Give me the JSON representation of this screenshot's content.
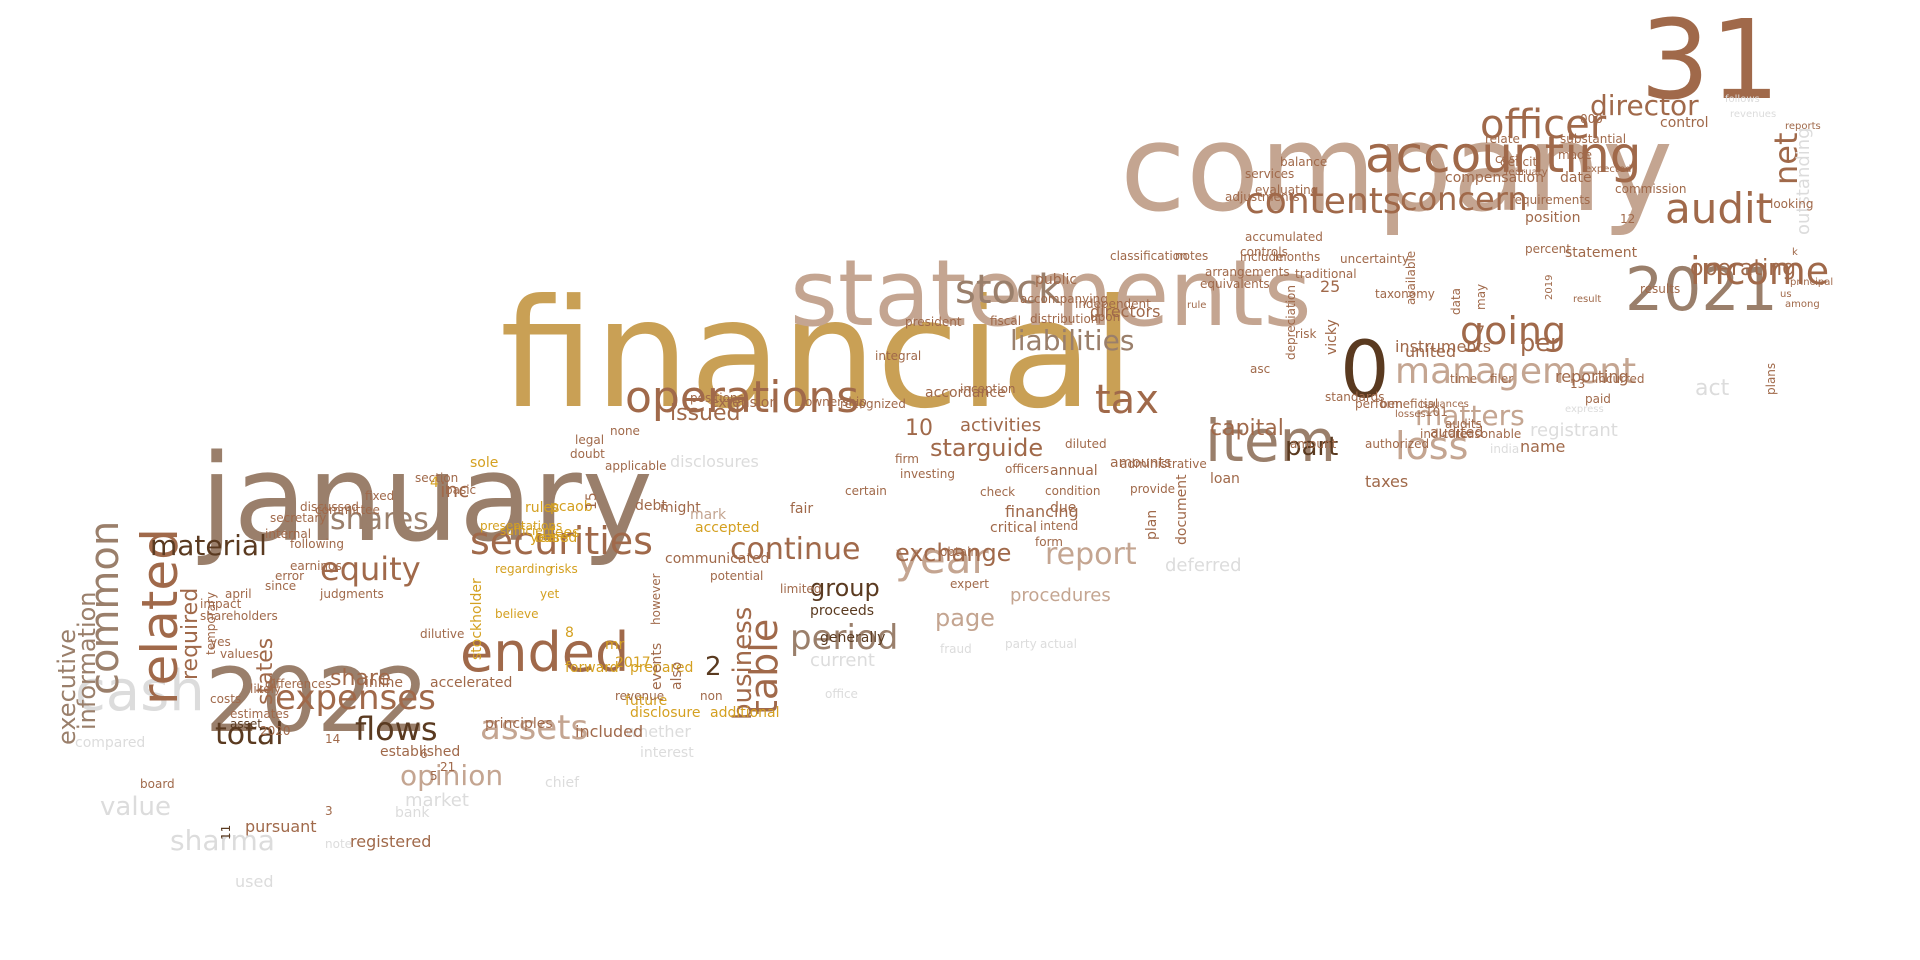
{
  "palette": {
    "background": "#ffffff",
    "gold": "#c9a055",
    "tan": "#c4a591",
    "taupe": "#9a7f6b",
    "brown": "#a0694a",
    "dark_brown": "#5a3a20",
    "mustard": "#d4a020",
    "grey": "#dcdcdc"
  },
  "words": [
    {
      "text": "financial"
    },
    {
      "text": "company"
    },
    {
      "text": "january"
    },
    {
      "text": "statements"
    },
    {
      "text": "31"
    },
    {
      "text": "2022"
    },
    {
      "text": "2021"
    },
    {
      "text": "0"
    },
    {
      "text": "item"
    },
    {
      "text": "cash"
    },
    {
      "text": "accounting"
    },
    {
      "text": "related"
    },
    {
      "text": "ended"
    },
    {
      "text": "income"
    },
    {
      "text": "audit"
    },
    {
      "text": "operations"
    },
    {
      "text": "management"
    },
    {
      "text": "common"
    },
    {
      "text": "securities"
    },
    {
      "text": "year"
    },
    {
      "text": "officer"
    },
    {
      "text": "contents"
    },
    {
      "text": "tax"
    },
    {
      "text": "stock"
    },
    {
      "text": "expenses"
    },
    {
      "text": "assets"
    },
    {
      "text": "loss"
    },
    {
      "text": "going"
    },
    {
      "text": "table"
    },
    {
      "text": "equity"
    },
    {
      "text": "net"
    },
    {
      "text": "flows"
    },
    {
      "text": "concern"
    },
    {
      "text": "report"
    },
    {
      "text": "period"
    },
    {
      "text": "shares"
    },
    {
      "text": "director"
    },
    {
      "text": "liabilities"
    },
    {
      "text": "continue"
    },
    {
      "text": "matters"
    },
    {
      "text": "exchange"
    },
    {
      "text": "total"
    },
    {
      "text": "opinion"
    },
    {
      "text": "material"
    },
    {
      "text": "sharma"
    },
    {
      "text": "value"
    },
    {
      "text": "executive"
    },
    {
      "text": "information"
    },
    {
      "text": "business"
    },
    {
      "text": "starguide"
    },
    {
      "text": "group"
    },
    {
      "text": "part"
    },
    {
      "text": "operating"
    },
    {
      "text": "capital"
    },
    {
      "text": "page"
    },
    {
      "text": "issued"
    },
    {
      "text": "share"
    },
    {
      "text": "act"
    },
    {
      "text": "per"
    },
    {
      "text": "procedures"
    },
    {
      "text": "2"
    },
    {
      "text": "10"
    },
    {
      "text": "required"
    },
    {
      "text": "deferred"
    },
    {
      "text": "registrant"
    },
    {
      "text": "activities"
    },
    {
      "text": "states"
    },
    {
      "text": "inc"
    },
    {
      "text": "outstanding"
    },
    {
      "text": "current"
    },
    {
      "text": "market"
    },
    {
      "text": "reporting"
    },
    {
      "text": "whether"
    },
    {
      "text": "disclosures"
    },
    {
      "text": "instruments"
    },
    {
      "text": "taxes"
    },
    {
      "text": "united"
    },
    {
      "text": "compensation"
    },
    {
      "text": "statement"
    },
    {
      "text": "date"
    },
    {
      "text": "vicky"
    },
    {
      "text": "7"
    },
    {
      "text": "financing"
    },
    {
      "text": "accordance"
    },
    {
      "text": "critical"
    },
    {
      "text": "pursuant"
    },
    {
      "text": "stockholder"
    },
    {
      "text": "chief"
    },
    {
      "text": "disclosure"
    },
    {
      "text": "audited"
    },
    {
      "text": "accompanying"
    },
    {
      "text": "control"
    },
    {
      "text": "position"
    },
    {
      "text": "000"
    },
    {
      "text": "notes"
    },
    {
      "text": "upon"
    },
    {
      "text": "public"
    },
    {
      "text": "fair"
    },
    {
      "text": "annual"
    },
    {
      "text": "due"
    },
    {
      "text": "amounts"
    },
    {
      "text": "plan"
    },
    {
      "text": "document"
    },
    {
      "text": "loan"
    },
    {
      "text": "proceeds"
    },
    {
      "text": "generally"
    },
    {
      "text": "inline"
    },
    {
      "text": "accelerated"
    },
    {
      "text": "principles"
    },
    {
      "text": "established"
    },
    {
      "text": "estimates"
    },
    {
      "text": "costs"
    },
    {
      "text": "likely"
    },
    {
      "text": "differences"
    },
    {
      "text": "april"
    },
    {
      "text": "since"
    },
    {
      "text": "earnings"
    },
    {
      "text": "internal"
    },
    {
      "text": "committee"
    },
    {
      "text": "secretary"
    },
    {
      "text": "discussed"
    },
    {
      "text": "section"
    },
    {
      "text": "basic"
    },
    {
      "text": "sole"
    },
    {
      "text": "rules"
    },
    {
      "text": "pcaob"
    },
    {
      "text": "years"
    },
    {
      "text": "based"
    },
    {
      "text": "15"
    },
    {
      "text": "fees"
    },
    {
      "text": "debt"
    },
    {
      "text": "might"
    },
    {
      "text": "mark"
    },
    {
      "text": "accepted"
    },
    {
      "text": "communicated"
    },
    {
      "text": "prepared"
    },
    {
      "text": "forward"
    },
    {
      "text": "events"
    },
    {
      "text": "also"
    },
    {
      "text": "2017"
    },
    {
      "text": "mr"
    },
    {
      "text": "8"
    },
    {
      "text": "future"
    },
    {
      "text": "interest"
    },
    {
      "text": "bank"
    },
    {
      "text": "note"
    },
    {
      "text": "used"
    },
    {
      "text": "compared"
    },
    {
      "text": "board"
    },
    {
      "text": "asset"
    },
    {
      "text": "14"
    },
    {
      "text": "2020"
    },
    {
      "text": "1"
    },
    {
      "text": "4"
    },
    {
      "text": "additional"
    },
    {
      "text": "extension"
    },
    {
      "text": "positions"
    },
    {
      "text": "none"
    },
    {
      "text": "legal"
    },
    {
      "text": "doubt"
    },
    {
      "text": "applicable"
    },
    {
      "text": "integral"
    },
    {
      "text": "president"
    },
    {
      "text": "fiscal"
    },
    {
      "text": "independent"
    },
    {
      "text": "controls"
    },
    {
      "text": "accumulated"
    },
    {
      "text": "classification"
    },
    {
      "text": "include"
    },
    {
      "text": "months"
    },
    {
      "text": "evaluating"
    },
    {
      "text": "adjustments"
    },
    {
      "text": "services"
    },
    {
      "text": "balance"
    },
    {
      "text": "deficit"
    },
    {
      "text": "cost"
    },
    {
      "text": "relate"
    },
    {
      "text": "made"
    },
    {
      "text": "substantial"
    },
    {
      "text": "expected"
    },
    {
      "text": "february"
    },
    {
      "text": "requirements"
    },
    {
      "text": "commission"
    },
    {
      "text": "12"
    },
    {
      "text": "uncertainty"
    },
    {
      "text": "percent"
    },
    {
      "text": "results"
    },
    {
      "text": "looking"
    },
    {
      "text": "13"
    },
    {
      "text": "paid"
    },
    {
      "text": "incurred"
    },
    {
      "text": "plans"
    },
    {
      "text": "filer"
    },
    {
      "text": "time"
    },
    {
      "text": "101"
    },
    {
      "text": "beneficial"
    },
    {
      "text": "perform"
    },
    {
      "text": "standards"
    },
    {
      "text": "losses"
    },
    {
      "text": "indicate"
    },
    {
      "text": "audits"
    },
    {
      "text": "reasonable"
    },
    {
      "text": "india"
    },
    {
      "text": "depreciation"
    },
    {
      "text": "asc"
    },
    {
      "text": "risk"
    },
    {
      "text": "data"
    },
    {
      "text": "taxonomy"
    },
    {
      "text": "available"
    },
    {
      "text": "authorized"
    },
    {
      "text": "amount"
    },
    {
      "text": "provide"
    },
    {
      "text": "administrative"
    },
    {
      "text": "diluted"
    },
    {
      "text": "condition"
    },
    {
      "text": "intend"
    },
    {
      "text": "form"
    },
    {
      "text": "obtain"
    },
    {
      "text": "check"
    },
    {
      "text": "officers"
    },
    {
      "text": "expert"
    },
    {
      "text": "investing"
    },
    {
      "text": "firm"
    },
    {
      "text": "certain"
    },
    {
      "text": "limited"
    },
    {
      "text": "potential"
    },
    {
      "text": "non"
    },
    {
      "text": "revenue"
    },
    {
      "text": "risks"
    },
    {
      "text": "regarding"
    },
    {
      "text": "sufficient"
    },
    {
      "text": "presentations"
    },
    {
      "text": "fixed"
    },
    {
      "text": "believe"
    },
    {
      "text": "yet"
    },
    {
      "text": "dilutive"
    },
    {
      "text": "error"
    },
    {
      "text": "following"
    },
    {
      "text": "judgments"
    },
    {
      "text": "impact"
    },
    {
      "text": "shareholders"
    },
    {
      "text": "temporary"
    },
    {
      "text": "yes"
    },
    {
      "text": "values"
    },
    {
      "text": "11"
    },
    {
      "text": "6"
    },
    {
      "text": "5"
    },
    {
      "text": "21"
    },
    {
      "text": "3"
    },
    {
      "text": "registered"
    },
    {
      "text": "included"
    },
    {
      "text": "25"
    },
    {
      "text": "directors"
    },
    {
      "text": "name"
    },
    {
      "text": "actual"
    },
    {
      "text": "fraud"
    },
    {
      "text": "party"
    },
    {
      "text": "office"
    },
    {
      "text": "follows"
    },
    {
      "text": "revenues"
    },
    {
      "text": "k"
    },
    {
      "text": "us"
    },
    {
      "text": "among"
    },
    {
      "text": "principal"
    },
    {
      "text": "reports"
    },
    {
      "text": "result"
    },
    {
      "text": "express"
    },
    {
      "text": "issuances"
    },
    {
      "text": "may"
    },
    {
      "text": "2019"
    },
    {
      "text": "rule"
    },
    {
      "text": "equivalents"
    },
    {
      "text": "arrangements"
    },
    {
      "text": "traditional"
    },
    {
      "text": "distribution"
    },
    {
      "text": "recognized"
    },
    {
      "text": "ownership"
    },
    {
      "text": "inception"
    },
    {
      "text": "however"
    }
  ]
}
